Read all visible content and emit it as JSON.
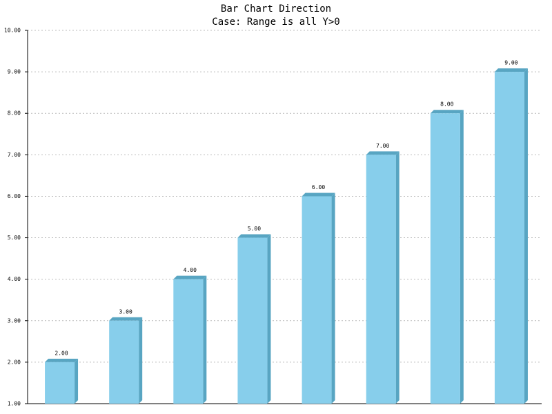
{
  "chart_data": {
    "type": "bar",
    "title": "Bar Chart Direction",
    "subtitle": "Case: Range is all Y>0",
    "categories": [
      null,
      null,
      null,
      null,
      null,
      null,
      null,
      null
    ],
    "values": [
      2,
      3,
      4,
      5,
      6,
      7,
      8,
      9
    ],
    "value_labels": [
      "2.00",
      "3.00",
      "4.00",
      "5.00",
      "6.00",
      "7.00",
      "8.00",
      "9.00"
    ],
    "color": "#87ceeb",
    "ylim": [
      1,
      10
    ],
    "yticks": [
      {
        "value": 1,
        "label": "1.00"
      },
      {
        "value": 2,
        "label": "2.00"
      },
      {
        "value": 3,
        "label": "3.00"
      },
      {
        "value": 4,
        "label": "4.00"
      },
      {
        "value": 5,
        "label": "5.00"
      },
      {
        "value": 6,
        "label": "6.00"
      },
      {
        "value": 7,
        "label": "7.00"
      },
      {
        "value": 8,
        "label": "8.00"
      },
      {
        "value": 9,
        "label": "9.00"
      },
      {
        "value": 10,
        "label": "10.00"
      }
    ],
    "grid": true
  }
}
